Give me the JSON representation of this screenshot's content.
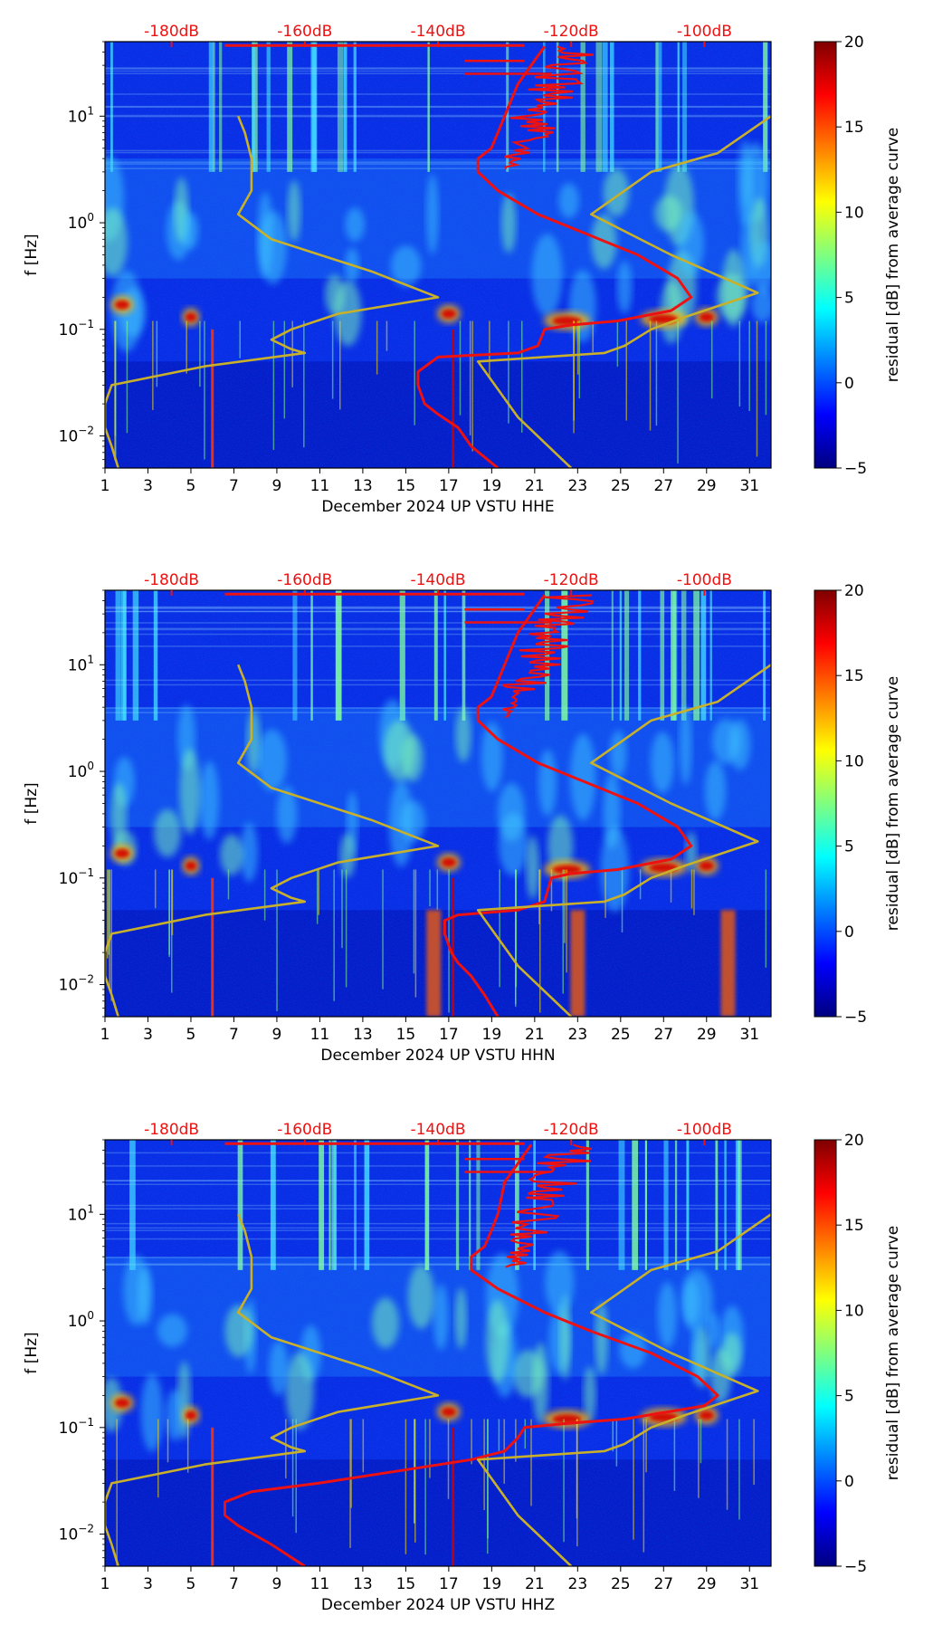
{
  "figure": {
    "colors": {
      "accent_red": "#ee1111",
      "psd_curve": "#ee1111",
      "model_curve": "#c8b02a",
      "axis": "#000000",
      "background": "#ffffff"
    },
    "colormap": [
      "#00007f",
      "#0000ff",
      "#007fff",
      "#00ffff",
      "#7fff7f",
      "#ffff00",
      "#ff7f00",
      "#ff0000",
      "#7f0000"
    ]
  },
  "chart_data": [
    {
      "type": "heatmap",
      "title": "",
      "xlabel": "December 2024 UP VSTU  HHE",
      "ylabel": "f [Hz]",
      "x_ticks": [
        "1",
        "3",
        "5",
        "7",
        "9",
        "11",
        "13",
        "15",
        "17",
        "19",
        "21",
        "23",
        "25",
        "27",
        "29",
        "31"
      ],
      "xlim": [
        1,
        32
      ],
      "ylim": [
        0.005,
        50
      ],
      "yscale": "log",
      "y_ticks": [
        {
          "value": 0.01,
          "base": "10",
          "exp": "−2"
        },
        {
          "value": 0.1,
          "base": "10",
          "exp": "−1"
        },
        {
          "value": 1,
          "base": "10",
          "exp": "0"
        },
        {
          "value": 10,
          "base": "10",
          "exp": "1"
        }
      ],
      "top_axis_ticks": [
        "-180dB",
        "-160dB",
        "-140dB",
        "-120dB",
        "-100dB"
      ],
      "top_axis_db_range": [
        -190,
        -90
      ],
      "colorbar": {
        "label": "residual [dB] from average curve",
        "range": [
          -5,
          20
        ],
        "ticks": [
          "−5",
          "0",
          "5",
          "10",
          "15",
          "20"
        ]
      },
      "series": [
        {
          "name": "PSD curve (dB)",
          "color": "#ee1111",
          "points": [
            [
              -131,
              0.005
            ],
            [
              -135,
              0.008
            ],
            [
              -137,
              0.012
            ],
            [
              -140,
              0.016
            ],
            [
              -142,
              0.02
            ],
            [
              -143,
              0.03
            ],
            [
              -143,
              0.04
            ],
            [
              -140,
              0.055
            ],
            [
              -128,
              0.06
            ],
            [
              -125,
              0.07
            ],
            [
              -124,
              0.1
            ],
            [
              -120,
              0.11
            ],
            [
              -113,
              0.12
            ],
            [
              -105,
              0.15
            ],
            [
              -102,
              0.2
            ],
            [
              -104,
              0.3
            ],
            [
              -110,
              0.5
            ],
            [
              -118,
              0.8
            ],
            [
              -125,
              1.2
            ],
            [
              -131,
              2
            ],
            [
              -134,
              3
            ],
            [
              -134,
              4
            ],
            [
              -132,
              5
            ],
            [
              -131,
              7
            ],
            [
              -130,
              10
            ],
            [
              -128,
              20
            ],
            [
              -126,
              30
            ],
            [
              -124,
              45
            ]
          ]
        },
        {
          "name": "noise model",
          "color": "#c8b02a",
          "points": [
            [
              -188,
              0.005
            ],
            [
              -189,
              0.008
            ],
            [
              -190,
              0.012
            ],
            [
              -190,
              0.02
            ],
            [
              -189,
              0.03
            ],
            [
              -175,
              0.045
            ],
            [
              -160,
              0.06
            ],
            [
              -162,
              0.065
            ],
            [
              -165,
              0.08
            ],
            [
              -162,
              0.1
            ],
            [
              -155,
              0.14
            ],
            [
              -140,
              0.2
            ],
            [
              -150,
              0.35
            ],
            [
              -165,
              0.7
            ],
            [
              -170,
              1.2
            ],
            [
              -168,
              2
            ],
            [
              -168,
              4
            ],
            [
              -169,
              7
            ],
            [
              -170,
              10
            ]
          ]
        },
        {
          "name": "noise model (upper)",
          "color": "#c8b02a",
          "points": [
            [
              -120,
              0.005
            ],
            [
              -128,
              0.015
            ],
            [
              -134,
              0.05
            ],
            [
              -115,
              0.06
            ],
            [
              -112,
              0.07
            ],
            [
              -108,
              0.1
            ],
            [
              -103,
              0.13
            ],
            [
              -92,
              0.22
            ],
            [
              -105,
              0.5
            ],
            [
              -117,
              1.2
            ],
            [
              -108,
              3
            ],
            [
              -98,
              4.5
            ],
            [
              -90,
              10
            ]
          ]
        }
      ]
    },
    {
      "type": "heatmap",
      "title": "",
      "xlabel": "December 2024 UP VSTU  HHN",
      "ylabel": "f [Hz]",
      "x_ticks": [
        "1",
        "3",
        "5",
        "7",
        "9",
        "11",
        "13",
        "15",
        "17",
        "19",
        "21",
        "23",
        "25",
        "27",
        "29",
        "31"
      ],
      "xlim": [
        1,
        32
      ],
      "ylim": [
        0.005,
        50
      ],
      "yscale": "log",
      "y_ticks": [
        {
          "value": 0.01,
          "base": "10",
          "exp": "−2"
        },
        {
          "value": 0.1,
          "base": "10",
          "exp": "−1"
        },
        {
          "value": 1,
          "base": "10",
          "exp": "0"
        },
        {
          "value": 10,
          "base": "10",
          "exp": "1"
        }
      ],
      "top_axis_ticks": [
        "-180dB",
        "-160dB",
        "-140dB",
        "-120dB",
        "-100dB"
      ],
      "top_axis_db_range": [
        -190,
        -90
      ],
      "colorbar": {
        "label": "residual [dB] from average curve",
        "range": [
          -5,
          20
        ],
        "ticks": [
          "−5",
          "0",
          "5",
          "10",
          "15",
          "20"
        ]
      },
      "series": [
        {
          "name": "PSD curve (dB)",
          "color": "#ee1111",
          "points": [
            [
              -131,
              0.005
            ],
            [
              -133,
              0.008
            ],
            [
              -135,
              0.012
            ],
            [
              -137,
              0.016
            ],
            [
              -138,
              0.02
            ],
            [
              -139,
              0.03
            ],
            [
              -139,
              0.04
            ],
            [
              -137,
              0.045
            ],
            [
              -128,
              0.05
            ],
            [
              -124,
              0.06
            ],
            [
              -123,
              0.1
            ],
            [
              -120,
              0.11
            ],
            [
              -113,
              0.12
            ],
            [
              -105,
              0.15
            ],
            [
              -102,
              0.2
            ],
            [
              -104,
              0.3
            ],
            [
              -110,
              0.5
            ],
            [
              -118,
              0.8
            ],
            [
              -125,
              1.2
            ],
            [
              -131,
              2
            ],
            [
              -134,
              3
            ],
            [
              -134,
              4
            ],
            [
              -132,
              5
            ],
            [
              -131,
              7
            ],
            [
              -130,
              10
            ],
            [
              -128,
              20
            ],
            [
              -126,
              30
            ],
            [
              -124,
              45
            ]
          ]
        },
        {
          "name": "noise model",
          "color": "#c8b02a",
          "points": [
            [
              -188,
              0.005
            ],
            [
              -189,
              0.008
            ],
            [
              -190,
              0.012
            ],
            [
              -190,
              0.02
            ],
            [
              -189,
              0.03
            ],
            [
              -175,
              0.045
            ],
            [
              -160,
              0.06
            ],
            [
              -162,
              0.065
            ],
            [
              -165,
              0.08
            ],
            [
              -162,
              0.1
            ],
            [
              -155,
              0.14
            ],
            [
              -140,
              0.2
            ],
            [
              -150,
              0.35
            ],
            [
              -165,
              0.7
            ],
            [
              -170,
              1.2
            ],
            [
              -168,
              2
            ],
            [
              -168,
              4
            ],
            [
              -169,
              7
            ],
            [
              -170,
              10
            ]
          ]
        },
        {
          "name": "noise model (upper)",
          "color": "#c8b02a",
          "points": [
            [
              -120,
              0.005
            ],
            [
              -128,
              0.015
            ],
            [
              -134,
              0.05
            ],
            [
              -115,
              0.06
            ],
            [
              -112,
              0.07
            ],
            [
              -108,
              0.1
            ],
            [
              -103,
              0.13
            ],
            [
              -92,
              0.22
            ],
            [
              -105,
              0.5
            ],
            [
              -117,
              1.2
            ],
            [
              -108,
              3
            ],
            [
              -98,
              4.5
            ],
            [
              -90,
              10
            ]
          ]
        }
      ]
    },
    {
      "type": "heatmap",
      "title": "",
      "xlabel": "December 2024 UP VSTU  HHZ",
      "ylabel": "f [Hz]",
      "x_ticks": [
        "1",
        "3",
        "5",
        "7",
        "9",
        "11",
        "13",
        "15",
        "17",
        "19",
        "21",
        "23",
        "25",
        "27",
        "29",
        "31"
      ],
      "xlim": [
        1,
        32
      ],
      "ylim": [
        0.005,
        50
      ],
      "yscale": "log",
      "y_ticks": [
        {
          "value": 0.01,
          "base": "10",
          "exp": "−2"
        },
        {
          "value": 0.1,
          "base": "10",
          "exp": "−1"
        },
        {
          "value": 1,
          "base": "10",
          "exp": "0"
        },
        {
          "value": 10,
          "base": "10",
          "exp": "1"
        }
      ],
      "top_axis_ticks": [
        "-180dB",
        "-160dB",
        "-140dB",
        "-120dB",
        "-100dB"
      ],
      "top_axis_db_range": [
        -190,
        -90
      ],
      "colorbar": {
        "label": "residual [dB] from average curve",
        "range": [
          -5,
          20
        ],
        "ticks": [
          "−5",
          "0",
          "5",
          "10",
          "15",
          "20"
        ]
      },
      "series": [
        {
          "name": "PSD curve (dB)",
          "color": "#ee1111",
          "points": [
            [
              -160,
              0.005
            ],
            [
              -165,
              0.008
            ],
            [
              -170,
              0.012
            ],
            [
              -172,
              0.015
            ],
            [
              -172,
              0.02
            ],
            [
              -168,
              0.025
            ],
            [
              -158,
              0.03
            ],
            [
              -145,
              0.04
            ],
            [
              -135,
              0.05
            ],
            [
              -130,
              0.06
            ],
            [
              -128,
              0.08
            ],
            [
              -127,
              0.1
            ],
            [
              -120,
              0.11
            ],
            [
              -112,
              0.12
            ],
            [
              -100,
              0.16
            ],
            [
              -98,
              0.2
            ],
            [
              -101,
              0.3
            ],
            [
              -108,
              0.5
            ],
            [
              -117,
              0.8
            ],
            [
              -124,
              1.2
            ],
            [
              -131,
              2
            ],
            [
              -135,
              3
            ],
            [
              -135,
              4
            ],
            [
              -133,
              5
            ],
            [
              -132,
              7
            ],
            [
              -131,
              10
            ],
            [
              -130,
              20
            ],
            [
              -128,
              30
            ],
            [
              -126,
              45
            ]
          ]
        },
        {
          "name": "noise model",
          "color": "#c8b02a",
          "points": [
            [
              -188,
              0.005
            ],
            [
              -189,
              0.008
            ],
            [
              -190,
              0.012
            ],
            [
              -190,
              0.02
            ],
            [
              -189,
              0.03
            ],
            [
              -175,
              0.045
            ],
            [
              -160,
              0.06
            ],
            [
              -162,
              0.065
            ],
            [
              -165,
              0.08
            ],
            [
              -162,
              0.1
            ],
            [
              -155,
              0.14
            ],
            [
              -140,
              0.2
            ],
            [
              -150,
              0.35
            ],
            [
              -165,
              0.7
            ],
            [
              -170,
              1.2
            ],
            [
              -168,
              2
            ],
            [
              -168,
              4
            ],
            [
              -169,
              7
            ],
            [
              -170,
              10
            ]
          ]
        },
        {
          "name": "noise model (upper)",
          "color": "#c8b02a",
          "points": [
            [
              -120,
              0.005
            ],
            [
              -128,
              0.015
            ],
            [
              -134,
              0.05
            ],
            [
              -115,
              0.06
            ],
            [
              -112,
              0.07
            ],
            [
              -108,
              0.1
            ],
            [
              -103,
              0.13
            ],
            [
              -92,
              0.22
            ],
            [
              -105,
              0.5
            ],
            [
              -117,
              1.2
            ],
            [
              -108,
              3
            ],
            [
              -98,
              4.5
            ],
            [
              -90,
              10
            ]
          ]
        }
      ]
    }
  ]
}
